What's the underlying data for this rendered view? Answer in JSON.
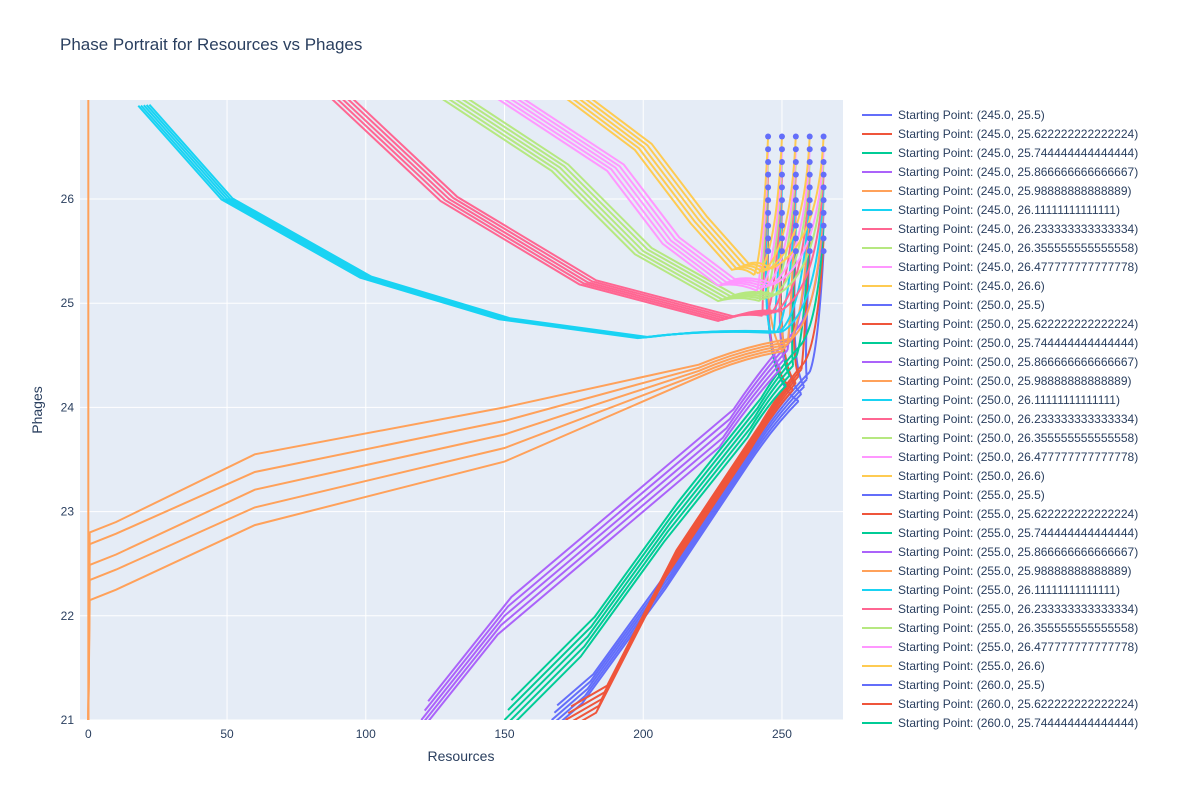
{
  "chart_data": {
    "type": "line",
    "title": "Phase Portrait for Resources vs Phages",
    "xlabel": "Resources",
    "ylabel": "Phages",
    "xlim": [
      -3,
      272
    ],
    "ylim": [
      21,
      26.95
    ],
    "x_ticks": [
      0,
      50,
      100,
      150,
      200,
      250
    ],
    "y_ticks": [
      21,
      22,
      23,
      24,
      25,
      26
    ],
    "x_tick_labels": [
      "0",
      "50",
      "100",
      "150",
      "200",
      "250"
    ],
    "y_tick_labels": [
      "21",
      "22",
      "23",
      "24",
      "25",
      "26"
    ],
    "grid": true,
    "legend_position": "right",
    "starting_x": [
      245.0,
      250.0,
      255.0,
      260.0,
      265.0
    ],
    "starting_y": [
      25.5,
      25.622222222222224,
      25.744444444444444,
      25.866666666666667,
      25.98888888888889,
      26.11111111111111,
      26.233333333333334,
      26.355555555555558,
      26.477777777777778,
      26.6
    ],
    "series_colors": [
      "#636efa",
      "#EF553B",
      "#00cc96",
      "#ab63fa",
      "#FFA15A",
      "#19d3f3",
      "#FF6692",
      "#B6E880",
      "#FF97FF",
      "#FECB52"
    ],
    "start_marker_color": "#636efa",
    "legend_entries": [
      "Starting Point: (245.0, 25.5)",
      "Starting Point: (245.0, 25.622222222222224)",
      "Starting Point: (245.0, 25.744444444444444)",
      "Starting Point: (245.0, 25.866666666666667)",
      "Starting Point: (245.0, 25.98888888888889)",
      "Starting Point: (245.0, 26.11111111111111)",
      "Starting Point: (245.0, 26.233333333333334)",
      "Starting Point: (245.0, 26.355555555555558)",
      "Starting Point: (245.0, 26.477777777777778)",
      "Starting Point: (245.0, 26.6)",
      "Starting Point: (250.0, 25.5)",
      "Starting Point: (250.0, 25.622222222222224)",
      "Starting Point: (250.0, 25.744444444444444)",
      "Starting Point: (250.0, 25.866666666666667)",
      "Starting Point: (250.0, 25.98888888888889)",
      "Starting Point: (250.0, 26.11111111111111)",
      "Starting Point: (250.0, 26.233333333333334)",
      "Starting Point: (250.0, 26.355555555555558)",
      "Starting Point: (250.0, 26.477777777777778)",
      "Starting Point: (250.0, 26.6)",
      "Starting Point: (255.0, 25.5)",
      "Starting Point: (255.0, 25.622222222222224)",
      "Starting Point: (255.0, 25.744444444444444)",
      "Starting Point: (255.0, 25.866666666666667)",
      "Starting Point: (255.0, 25.98888888888889)",
      "Starting Point: (255.0, 26.11111111111111)",
      "Starting Point: (255.0, 26.233333333333334)",
      "Starting Point: (255.0, 26.355555555555558)",
      "Starting Point: (255.0, 26.477777777777778)",
      "Starting Point: (255.0, 26.6)",
      "Starting Point: (260.0, 25.5)",
      "Starting Point: (260.0, 25.622222222222224)",
      "Starting Point: (260.0, 25.744444444444444)"
    ],
    "band_waypoints": [
      [
        [
          258,
          24.2
        ],
        [
          240,
          23.6
        ],
        [
          210,
          22.4
        ],
        [
          180,
          21.3
        ],
        [
          167,
          21.0
        ]
      ],
      [
        [
          256,
          24.3
        ],
        [
          240,
          23.7
        ],
        [
          210,
          22.5
        ],
        [
          185,
          21.2
        ],
        [
          172,
          21.0
        ]
      ],
      [
        [
          254,
          24.4
        ],
        [
          240,
          23.9
        ],
        [
          210,
          22.9
        ],
        [
          180,
          21.8
        ],
        [
          150,
          21.0
        ]
      ],
      [
        [
          252,
          24.55
        ],
        [
          230,
          23.8
        ],
        [
          190,
          22.9
        ],
        [
          150,
          22.0
        ],
        [
          120,
          21.0
        ]
      ],
      [
        [
          250,
          24.65
        ],
        [
          220,
          24.3
        ],
        [
          150,
          23.9
        ],
        [
          60,
          23.4
        ],
        [
          8,
          22.8
        ],
        [
          0,
          21.0
        ]
      ],
      [
        [
          248,
          24.72
        ],
        [
          200,
          24.67
        ],
        [
          150,
          24.85
        ],
        [
          100,
          25.25
        ],
        [
          50,
          26.0
        ],
        [
          20,
          26.9
        ]
      ],
      [
        [
          246,
          24.9
        ],
        [
          230,
          24.85
        ],
        [
          180,
          25.2
        ],
        [
          130,
          26.0
        ],
        [
          90,
          27.0
        ]
      ],
      [
        [
          245,
          25.05
        ],
        [
          230,
          25.05
        ],
        [
          200,
          25.5
        ],
        [
          170,
          26.3
        ],
        [
          130,
          27.0
        ]
      ],
      [
        [
          244,
          25.15
        ],
        [
          230,
          25.2
        ],
        [
          210,
          25.6
        ],
        [
          190,
          26.3
        ],
        [
          150,
          27.0
        ]
      ],
      [
        [
          243,
          25.3
        ],
        [
          235,
          25.35
        ],
        [
          220,
          25.8
        ],
        [
          200,
          26.5
        ],
        [
          175,
          27.0
        ]
      ]
    ],
    "band_spread_y": [
      0.28,
      0.26,
      0.38,
      0.36,
      0.12,
      0.01,
      0.04,
      0.06,
      0.06,
      0.06
    ],
    "band_spread_x": [
      4,
      4,
      5,
      5,
      3,
      4,
      6,
      6,
      6,
      6
    ],
    "band_y_factors": [
      0,
      0.22,
      0.52,
      0.75,
      1.0
    ],
    "curves_per_band": 5
  }
}
